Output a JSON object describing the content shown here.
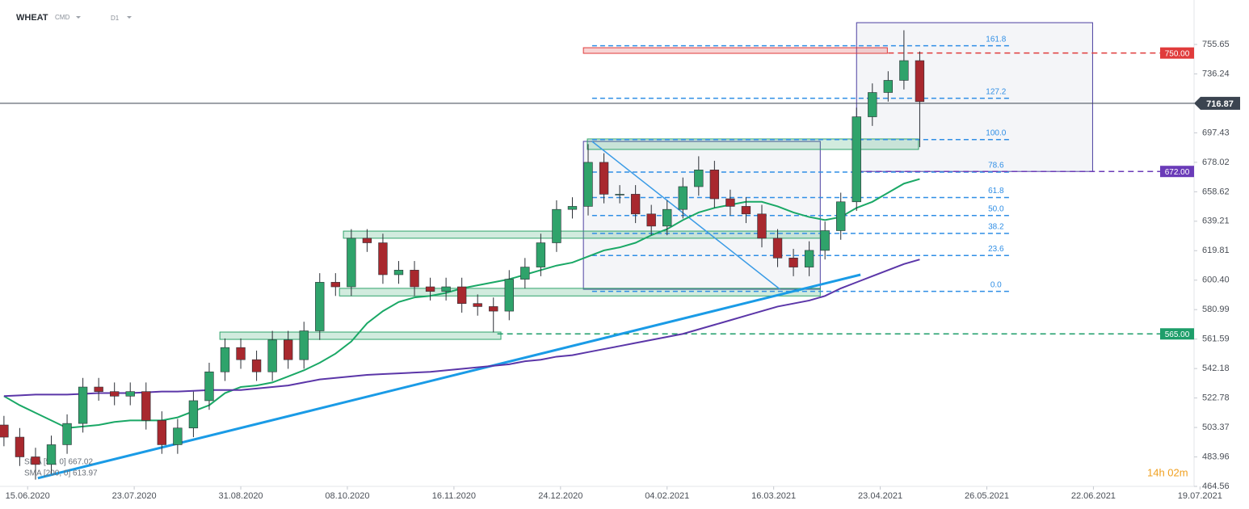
{
  "header": {
    "symbol": "WHEAT",
    "market": "CMD",
    "interval": "D1"
  },
  "chart_data": {
    "type": "candlestick",
    "x": [
      -6,
      -2,
      2,
      6,
      10,
      14,
      18,
      22,
      26,
      30,
      34,
      38,
      42,
      46,
      50,
      54,
      58,
      62,
      66,
      70,
      74,
      78,
      82,
      86,
      90,
      94,
      98,
      102,
      106,
      110,
      114,
      118,
      122,
      126,
      130,
      134,
      138,
      142,
      146,
      150,
      154,
      158,
      162,
      166,
      170,
      174,
      178,
      182,
      186,
      190,
      194,
      198,
      202,
      206,
      210,
      214,
      218,
      222,
      226
    ],
    "open": [
      505,
      497,
      484,
      479,
      492,
      506,
      530,
      527,
      524,
      527,
      508,
      492,
      503,
      521,
      540,
      556,
      548,
      540,
      561,
      548,
      567,
      599,
      596,
      628,
      625,
      604,
      607,
      596,
      593,
      596,
      585,
      583,
      580,
      601,
      609,
      625,
      647,
      649,
      678,
      657,
      657,
      644,
      636,
      647,
      662,
      673,
      654,
      649,
      644,
      628,
      615,
      609,
      620,
      633,
      652,
      708,
      724,
      732,
      745
    ],
    "high": [
      511,
      503,
      490,
      498,
      512,
      536,
      536,
      533,
      533,
      533,
      514,
      509,
      527,
      546,
      562,
      562,
      554,
      567,
      567,
      573,
      605,
      605,
      634,
      634,
      631,
      613,
      613,
      602,
      602,
      602,
      591,
      589,
      607,
      615,
      631,
      653,
      655,
      690,
      684,
      663,
      663,
      650,
      653,
      668,
      682,
      679,
      660,
      655,
      650,
      634,
      621,
      626,
      639,
      658,
      714,
      730,
      738,
      765,
      751
    ],
    "low": [
      491,
      478,
      469,
      473,
      486,
      500,
      521,
      518,
      518,
      502,
      486,
      486,
      497,
      515,
      534,
      542,
      534,
      534,
      542,
      542,
      561,
      590,
      590,
      619,
      598,
      598,
      590,
      587,
      587,
      579,
      577,
      566,
      574,
      595,
      603,
      619,
      641,
      643,
      651,
      651,
      638,
      630,
      630,
      641,
      656,
      648,
      643,
      638,
      622,
      609,
      603,
      603,
      614,
      627,
      646,
      702,
      718,
      726,
      688
    ],
    "close": [
      497,
      484,
      479,
      492,
      506,
      530,
      527,
      524,
      527,
      508,
      492,
      503,
      521,
      540,
      556,
      548,
      540,
      561,
      548,
      567,
      599,
      596,
      628,
      625,
      604,
      607,
      596,
      593,
      596,
      585,
      583,
      580,
      601,
      609,
      625,
      647,
      649,
      678,
      657,
      657,
      644,
      636,
      647,
      662,
      673,
      654,
      649,
      644,
      628,
      615,
      609,
      620,
      633,
      652,
      708,
      724,
      732,
      745,
      718
    ],
    "up_color": "#2fa36b",
    "down_color": "#a8282e",
    "xlim": [
      -7,
      295.5
    ],
    "xticks": [
      {
        "value": 0,
        "label": "15.06.2020"
      },
      {
        "value": 27,
        "label": "23.07.2020"
      },
      {
        "value": 54,
        "label": "31.08.2020"
      },
      {
        "value": 81,
        "label": "08.10.2020"
      },
      {
        "value": 108,
        "label": "16.11.2020"
      },
      {
        "value": 135,
        "label": "24.12.2020"
      },
      {
        "value": 162,
        "label": "04.02.2021"
      },
      {
        "value": 189,
        "label": "16.03.2021"
      },
      {
        "value": 216,
        "label": "23.04.2021"
      },
      {
        "value": 243,
        "label": "26.05.2021"
      },
      {
        "value": 270,
        "label": "22.06.2021"
      },
      {
        "value": 297,
        "label": "19.07.2021"
      }
    ],
    "ylim": [
      464.56,
      784.93
    ],
    "yticks": [
      464.56,
      483.96,
      503.37,
      522.78,
      542.18,
      561.59,
      580.99,
      {
        "value": 600.4,
        "label": "600.40"
      },
      619.81,
      639.21,
      658.62,
      678.02,
      697.43,
      736.24,
      755.65
    ],
    "series": [
      {
        "name": "SMA [50, 0] 667.02",
        "color": "#1aa866",
        "values": [
          524,
          518,
          513,
          508,
          503,
          504,
          505,
          507,
          508,
          508,
          508,
          510,
          514,
          518,
          526,
          530,
          531,
          533,
          537,
          541,
          546,
          552,
          560,
          572,
          580,
          586,
          589,
          590,
          592,
          595,
          597,
          599,
          601,
          604,
          607,
          610,
          612,
          616,
          620,
          622,
          625,
          630,
          634,
          640,
          645,
          648,
          650,
          652,
          652,
          649,
          645,
          642,
          640,
          642,
          648,
          652,
          658,
          664,
          667
        ]
      },
      {
        "name": "SMA [200, 0] 613.97",
        "color": "#5b36a8",
        "values": [
          524,
          524.5,
          525,
          525,
          525,
          525.5,
          526,
          526,
          526,
          526.5,
          527,
          527,
          527.5,
          528,
          528,
          528,
          529,
          530,
          531,
          533,
          535,
          536,
          537,
          538,
          538.5,
          539,
          539.5,
          540,
          541,
          542,
          543,
          544,
          545,
          547,
          548,
          550,
          551,
          553,
          555,
          557,
          559,
          561,
          563,
          565,
          568,
          571,
          574,
          577,
          580,
          583,
          585,
          587,
          590,
          595,
          599,
          603,
          607,
          611,
          614
        ]
      }
    ],
    "price_lines": [
      {
        "value": 750,
        "label": "750.00",
        "color": "#e03b3b",
        "from": 218
      },
      {
        "value": 672,
        "label": "672.00",
        "color": "#6a3bb8",
        "from": 210
      },
      {
        "value": 565,
        "label": "565.00",
        "color": "#1e9e6a",
        "from": 119
      }
    ],
    "current_price": {
      "value": 716.87,
      "label": "716.87",
      "color": "#3b4450"
    },
    "fibonacci": {
      "x": [
        143,
        249
      ],
      "color": "#2f8ee5",
      "levels": [
        {
          "value": 754.8,
          "label": "161.8"
        },
        {
          "value": 720.2,
          "label": "127.2"
        },
        {
          "value": 693,
          "label": "100.0"
        },
        {
          "value": 671.6,
          "label": "78.6"
        },
        {
          "value": 654.8,
          "label": "61.8"
        },
        {
          "value": 643,
          "label": "50.0"
        },
        {
          "value": 631.2,
          "label": "38.2"
        },
        {
          "value": 616.6,
          "label": "23.6"
        },
        {
          "value": 593,
          "label": "0.0"
        }
      ]
    },
    "lines": [
      {
        "x": [
          2.6,
          211
        ],
        "values": [
          470,
          604
        ],
        "color": "#1a9be6",
        "width": 3
      },
      {
        "x": [
          143,
          190.6
        ],
        "values": [
          691.8,
          594.4
        ],
        "color": "#3a9be6",
        "width": 1.5
      }
    ],
    "zones": [
      {
        "x": [
          48.7,
          119.9
        ],
        "values": [
          561.4,
          566.2
        ],
        "color": "#2fa36b"
      },
      {
        "x": [
          79,
          200.8
        ],
        "values": [
          590,
          595
        ],
        "color": "#2fa36b"
      },
      {
        "x": [
          80,
          200.8
        ],
        "values": [
          628,
          632.7
        ],
        "color": "#2fa36b"
      },
      {
        "x": [
          141.8,
          225.7
        ],
        "values": [
          686.5,
          693.4
        ],
        "color": "#2fa36b"
      },
      {
        "x": [
          140.8,
          217.8
        ],
        "values": [
          749.8,
          753.5
        ],
        "color": "#e03b3b"
      }
    ],
    "boxes": [
      {
        "x": [
          140.8,
          200.8
        ],
        "values": [
          594.4,
          691.8
        ],
        "color": "#4b3fa0"
      },
      {
        "x": [
          210,
          269.8
        ],
        "values": [
          672,
          770
        ],
        "color": "#4b3fa0"
      }
    ],
    "timer": "14h 02m"
  }
}
